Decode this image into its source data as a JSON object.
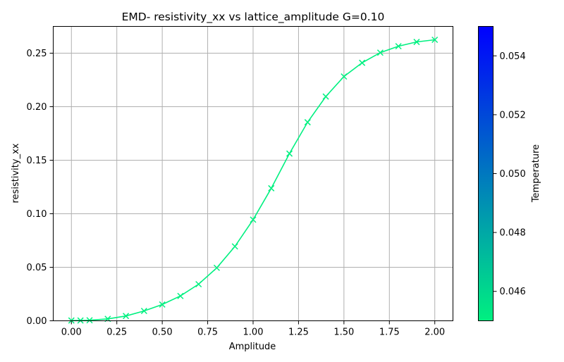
{
  "chart_data": {
    "type": "line",
    "title": "EMD- resistivity_xx vs lattice_amplitude G=0.10",
    "xlabel": "Amplitude",
    "ylabel": "resistivity_xx",
    "xlim": [
      -0.1,
      2.1
    ],
    "ylim": [
      0.0,
      0.275
    ],
    "x_ticks": [
      "0.00",
      "0.25",
      "0.50",
      "0.75",
      "1.00",
      "1.25",
      "1.50",
      "1.75",
      "2.00"
    ],
    "y_ticks": [
      "0.00",
      "0.05",
      "0.10",
      "0.15",
      "0.20",
      "0.25"
    ],
    "grid": true,
    "marker": "x",
    "series": [
      {
        "color": "#00f080",
        "x": [
          0.0,
          0.05,
          0.1,
          0.2,
          0.3,
          0.4,
          0.5,
          0.6,
          0.7,
          0.8,
          0.9,
          1.0,
          1.1,
          1.2,
          1.3,
          1.4,
          1.5,
          1.6,
          1.7,
          1.8,
          1.9,
          2.0
        ],
        "y": [
          0.0003,
          0.0003,
          0.0005,
          0.0018,
          0.0045,
          0.0092,
          0.0152,
          0.0232,
          0.0342,
          0.0495,
          0.0695,
          0.0945,
          0.1238,
          0.1562,
          0.1855,
          0.2095,
          0.2282,
          0.241,
          0.2505,
          0.2565,
          0.2605,
          0.2625
        ]
      }
    ],
    "colorbar": {
      "label": "Temperature",
      "ticks": [
        "0.046",
        "0.048",
        "0.050",
        "0.052",
        "0.054"
      ],
      "range": [
        0.045,
        0.055
      ],
      "color_low": "#00f080",
      "color_high": "#0000ff"
    }
  }
}
